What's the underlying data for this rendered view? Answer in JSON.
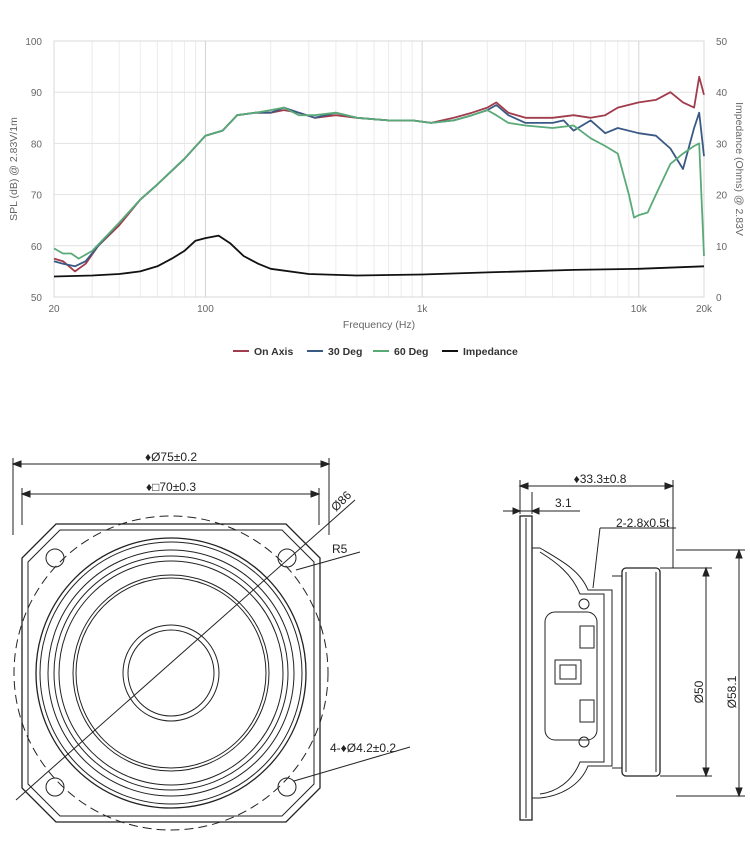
{
  "chart_data": {
    "type": "line",
    "title": "",
    "xlabel": "Frequency (Hz)",
    "ylabel": "SPL (dB) @ 2.83V/1m",
    "y2label": "Impedance (Ohms) @ 2.83V",
    "xscale": "log",
    "xlim": [
      20,
      20000
    ],
    "ylim": [
      50,
      100
    ],
    "y2lim": [
      0,
      50
    ],
    "xticks": [
      {
        "value": 20,
        "label": "20"
      },
      {
        "value": 100,
        "label": "100"
      },
      {
        "value": 1000,
        "label": "1k"
      },
      {
        "value": 10000,
        "label": "10k"
      },
      {
        "value": 20000,
        "label": "20k"
      }
    ],
    "yticks": [
      50,
      60,
      70,
      80,
      90,
      100
    ],
    "y2ticks": [
      0,
      10,
      20,
      30,
      40,
      50
    ],
    "grid": true,
    "legend_position": "bottom",
    "series": [
      {
        "name": "On Axis",
        "axis": "left",
        "color": "#a03c4c",
        "points": [
          [
            20,
            57.5
          ],
          [
            22,
            57
          ],
          [
            25,
            55
          ],
          [
            28,
            56.5
          ],
          [
            32,
            60
          ],
          [
            40,
            64
          ],
          [
            50,
            69
          ],
          [
            60,
            72
          ],
          [
            80,
            77
          ],
          [
            100,
            81.5
          ],
          [
            120,
            82.5
          ],
          [
            140,
            85.5
          ],
          [
            170,
            86
          ],
          [
            200,
            86
          ],
          [
            230,
            86.5
          ],
          [
            270,
            86
          ],
          [
            320,
            85
          ],
          [
            400,
            85.5
          ],
          [
            500,
            85
          ],
          [
            700,
            84.5
          ],
          [
            900,
            84.5
          ],
          [
            1100,
            84
          ],
          [
            1400,
            85
          ],
          [
            1700,
            86
          ],
          [
            2000,
            87
          ],
          [
            2200,
            88
          ],
          [
            2500,
            86
          ],
          [
            3000,
            85
          ],
          [
            4000,
            85
          ],
          [
            5000,
            85.5
          ],
          [
            6000,
            85
          ],
          [
            7000,
            85.5
          ],
          [
            8000,
            87
          ],
          [
            10000,
            88
          ],
          [
            12000,
            88.5
          ],
          [
            14000,
            90
          ],
          [
            16000,
            88
          ],
          [
            18000,
            87
          ],
          [
            19000,
            93
          ],
          [
            20000,
            89.5
          ]
        ]
      },
      {
        "name": "30 Deg",
        "axis": "left",
        "color": "#3a5a85",
        "points": [
          [
            20,
            57
          ],
          [
            22,
            56.5
          ],
          [
            25,
            56
          ],
          [
            28,
            57
          ],
          [
            32,
            60
          ],
          [
            40,
            64.5
          ],
          [
            50,
            69
          ],
          [
            60,
            72
          ],
          [
            80,
            77
          ],
          [
            100,
            81.5
          ],
          [
            120,
            82.5
          ],
          [
            140,
            85.5
          ],
          [
            170,
            86
          ],
          [
            200,
            86
          ],
          [
            230,
            87
          ],
          [
            270,
            86
          ],
          [
            320,
            85
          ],
          [
            400,
            86
          ],
          [
            500,
            85
          ],
          [
            700,
            84.5
          ],
          [
            900,
            84.5
          ],
          [
            1100,
            84
          ],
          [
            1400,
            84.5
          ],
          [
            1700,
            85.5
          ],
          [
            2000,
            86.5
          ],
          [
            2200,
            87.5
          ],
          [
            2500,
            85.5
          ],
          [
            3000,
            84
          ],
          [
            4000,
            84
          ],
          [
            4500,
            84.5
          ],
          [
            5000,
            82.5
          ],
          [
            6000,
            84.5
          ],
          [
            7000,
            82
          ],
          [
            8000,
            83
          ],
          [
            10000,
            82
          ],
          [
            12000,
            81.5
          ],
          [
            14000,
            79
          ],
          [
            16000,
            75
          ],
          [
            18000,
            83
          ],
          [
            19000,
            86
          ],
          [
            20000,
            77.5
          ]
        ]
      },
      {
        "name": "60 Deg",
        "axis": "left",
        "color": "#5aaa78",
        "points": [
          [
            20,
            59.5
          ],
          [
            22,
            58.5
          ],
          [
            24,
            58.5
          ],
          [
            26,
            57.5
          ],
          [
            30,
            59
          ],
          [
            40,
            64.5
          ],
          [
            50,
            69
          ],
          [
            60,
            72
          ],
          [
            80,
            77
          ],
          [
            100,
            81.5
          ],
          [
            120,
            82.5
          ],
          [
            140,
            85.5
          ],
          [
            170,
            86
          ],
          [
            200,
            86.5
          ],
          [
            230,
            87
          ],
          [
            270,
            85.5
          ],
          [
            320,
            85.5
          ],
          [
            400,
            86
          ],
          [
            500,
            85
          ],
          [
            700,
            84.5
          ],
          [
            900,
            84.5
          ],
          [
            1100,
            84
          ],
          [
            1400,
            84.5
          ],
          [
            1700,
            85.5
          ],
          [
            2000,
            86.5
          ],
          [
            2200,
            85.5
          ],
          [
            2500,
            84
          ],
          [
            3000,
            83.5
          ],
          [
            4000,
            83
          ],
          [
            5000,
            83.5
          ],
          [
            6000,
            81
          ],
          [
            7000,
            79.5
          ],
          [
            8000,
            78
          ],
          [
            9000,
            70
          ],
          [
            9500,
            65.5
          ],
          [
            10000,
            66
          ],
          [
            11000,
            66.5
          ],
          [
            12000,
            70
          ],
          [
            14000,
            76
          ],
          [
            16000,
            78
          ],
          [
            18000,
            79.5
          ],
          [
            19000,
            80
          ],
          [
            20000,
            58
          ]
        ]
      },
      {
        "name": "Impedance",
        "axis": "right",
        "color": "#111111",
        "points": [
          [
            20,
            4
          ],
          [
            30,
            4.2
          ],
          [
            40,
            4.5
          ],
          [
            50,
            5
          ],
          [
            60,
            6
          ],
          [
            70,
            7.5
          ],
          [
            80,
            9
          ],
          [
            90,
            11
          ],
          [
            100,
            11.5
          ],
          [
            115,
            12
          ],
          [
            130,
            10.5
          ],
          [
            150,
            8
          ],
          [
            175,
            6.5
          ],
          [
            200,
            5.5
          ],
          [
            300,
            4.5
          ],
          [
            500,
            4.2
          ],
          [
            1000,
            4.4
          ],
          [
            2000,
            4.8
          ],
          [
            5000,
            5.3
          ],
          [
            10000,
            5.5
          ],
          [
            20000,
            6
          ]
        ]
      }
    ]
  },
  "drawing": {
    "front": {
      "dim_outer": "♦Ø75±0.2",
      "dim_square": "♦□70±0.3",
      "dim_diag": "Ø86",
      "dim_radius": "R5",
      "dim_holes": "4-♦Ø4.2±0.2"
    },
    "side": {
      "dim_depth": "♦33.3±0.8",
      "dim_flange": "3.1",
      "dim_terminal": "2-2.8x0.5t",
      "dim_magnet_inner": "Ø50",
      "dim_magnet_outer": "Ø58.1"
    }
  }
}
